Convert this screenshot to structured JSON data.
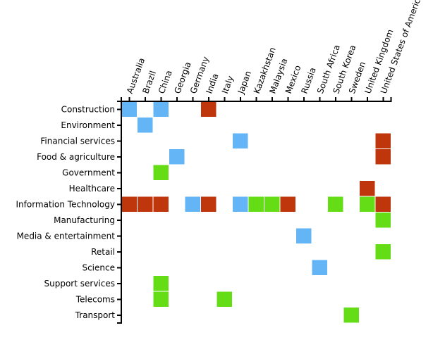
{
  "chart_data": {
    "type": "heatmap",
    "x_categories": [
      "Australia",
      "Brazil",
      "China",
      "Georgia",
      "Germany",
      "India",
      "Italy",
      "Japan",
      "Kazakhstan",
      "Malaysia",
      "Mexico",
      "Russia",
      "South Africa",
      "South Korea",
      "Sweden",
      "United Kingdom",
      "United States of America"
    ],
    "y_categories": [
      "Construction",
      "Environment",
      "Financial services",
      "Food & agriculture",
      "Government",
      "Healthcare",
      "Information Technology",
      "Manufacturing",
      "Media & entertainment",
      "Retail",
      "Science",
      "Support services",
      "Telecoms",
      "Transport"
    ],
    "colors": {
      "blue": "#64b5f6",
      "green": "#64dd17",
      "red": "#bf360c",
      "axis": "#000000"
    },
    "cells": [
      {
        "x": "Australia",
        "y": "Construction",
        "color": "blue"
      },
      {
        "x": "China",
        "y": "Construction",
        "color": "blue"
      },
      {
        "x": "India",
        "y": "Construction",
        "color": "red"
      },
      {
        "x": "Brazil",
        "y": "Environment",
        "color": "blue"
      },
      {
        "x": "Japan",
        "y": "Financial services",
        "color": "blue"
      },
      {
        "x": "United States of America",
        "y": "Financial services",
        "color": "red"
      },
      {
        "x": "Georgia",
        "y": "Food & agriculture",
        "color": "blue"
      },
      {
        "x": "United States of America",
        "y": "Food & agriculture",
        "color": "red"
      },
      {
        "x": "China",
        "y": "Government",
        "color": "green"
      },
      {
        "x": "United Kingdom",
        "y": "Healthcare",
        "color": "red"
      },
      {
        "x": "Australia",
        "y": "Information Technology",
        "color": "red"
      },
      {
        "x": "Brazil",
        "y": "Information Technology",
        "color": "red"
      },
      {
        "x": "China",
        "y": "Information Technology",
        "color": "red"
      },
      {
        "x": "Germany",
        "y": "Information Technology",
        "color": "blue"
      },
      {
        "x": "India",
        "y": "Information Technology",
        "color": "red"
      },
      {
        "x": "Japan",
        "y": "Information Technology",
        "color": "blue"
      },
      {
        "x": "Kazakhstan",
        "y": "Information Technology",
        "color": "green"
      },
      {
        "x": "Malaysia",
        "y": "Information Technology",
        "color": "green"
      },
      {
        "x": "Mexico",
        "y": "Information Technology",
        "color": "red"
      },
      {
        "x": "South Korea",
        "y": "Information Technology",
        "color": "green"
      },
      {
        "x": "United Kingdom",
        "y": "Information Technology",
        "color": "green"
      },
      {
        "x": "United States of America",
        "y": "Information Technology",
        "color": "red"
      },
      {
        "x": "United States of America",
        "y": "Manufacturing",
        "color": "green"
      },
      {
        "x": "Russia",
        "y": "Media & entertainment",
        "color": "blue"
      },
      {
        "x": "United States of America",
        "y": "Retail",
        "color": "green"
      },
      {
        "x": "South Africa",
        "y": "Science",
        "color": "blue"
      },
      {
        "x": "China",
        "y": "Support services",
        "color": "green"
      },
      {
        "x": "China",
        "y": "Telecoms",
        "color": "green"
      },
      {
        "x": "Italy",
        "y": "Telecoms",
        "color": "green"
      },
      {
        "x": "Sweden",
        "y": "Transport",
        "color": "green"
      }
    ],
    "x_axis_position": "top",
    "x_tick_label_rotation": "-70",
    "grid": false,
    "legend": "none"
  }
}
